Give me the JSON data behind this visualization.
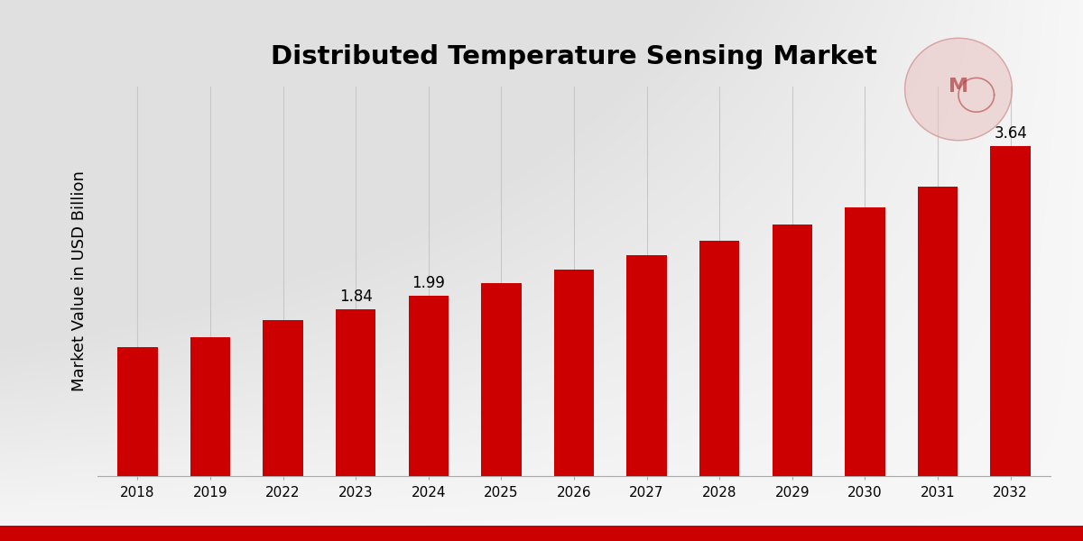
{
  "title": "Distributed Temperature Sensing Market",
  "ylabel": "Market Value in USD Billion",
  "categories": [
    "2018",
    "2019",
    "2022",
    "2023",
    "2024",
    "2025",
    "2026",
    "2027",
    "2028",
    "2029",
    "2030",
    "2031",
    "2032"
  ],
  "values": [
    1.42,
    1.53,
    1.72,
    1.84,
    1.99,
    2.13,
    2.28,
    2.44,
    2.6,
    2.78,
    2.97,
    3.2,
    3.64
  ],
  "labeled_bars": {
    "2023": "1.84",
    "2024": "1.99",
    "2032": "3.64"
  },
  "bar_color": "#CC0000",
  "vgrid_color": "#c8c8c8",
  "title_fontsize": 21,
  "ylabel_fontsize": 13,
  "tick_fontsize": 11,
  "label_fontsize": 12,
  "ylim": [
    0,
    4.3
  ],
  "bar_width": 0.55,
  "bottom_banner_color": "#CC0000"
}
